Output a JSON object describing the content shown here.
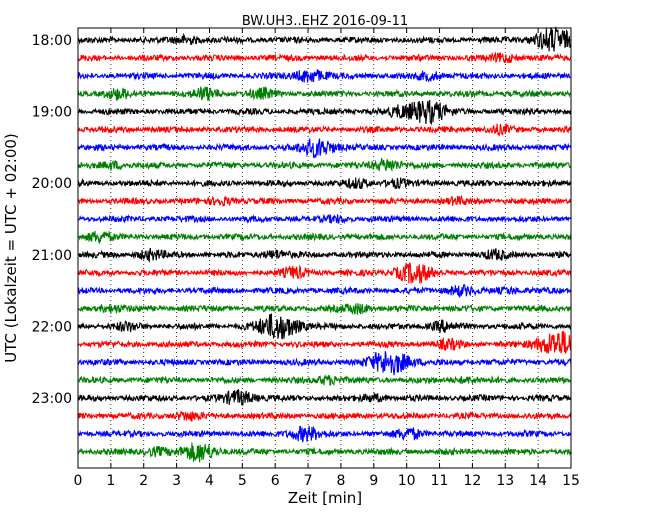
{
  "chart_data": {
    "type": "line",
    "title": "BW.UH3..EHZ 2016-09-11",
    "xlabel": "Zeit  [min]",
    "ylabel": "UTC (Lokalzeit = UTC + 02:00)",
    "xlim": [
      0,
      15
    ],
    "x_ticks": [
      "0",
      "1",
      "2",
      "3",
      "4",
      "5",
      "6",
      "7",
      "8",
      "9",
      "10",
      "11",
      "12",
      "13",
      "14",
      "15"
    ],
    "y_ticks": [
      "18:00",
      "19:00",
      "20:00",
      "21:00",
      "22:00",
      "23:00"
    ],
    "grid": "vertical dotted",
    "trace_interval_min": 15,
    "series": [
      {
        "start": "18:00",
        "color": "#000000",
        "events": [
          [
            3.3,
            0.3
          ],
          [
            14.45,
            0.9
          ]
        ]
      },
      {
        "start": "18:15",
        "color": "#ff0000",
        "events": [
          [
            13.0,
            0.3
          ]
        ]
      },
      {
        "start": "18:30",
        "color": "#0000ff",
        "events": [
          [
            7.05,
            0.5
          ],
          [
            10.7,
            0.3
          ]
        ]
      },
      {
        "start": "18:45",
        "color": "#008000",
        "events": [
          [
            1.2,
            0.35
          ],
          [
            3.9,
            0.4
          ],
          [
            5.6,
            0.3
          ]
        ]
      },
      {
        "start": "19:00",
        "color": "#000000",
        "events": [
          [
            10.6,
            0.9
          ],
          [
            9.8,
            0.3
          ]
        ]
      },
      {
        "start": "19:15",
        "color": "#ff0000",
        "events": [
          [
            12.8,
            0.25
          ]
        ]
      },
      {
        "start": "19:30",
        "color": "#0000ff",
        "events": [
          [
            7.3,
            0.7
          ]
        ]
      },
      {
        "start": "19:45",
        "color": "#008000",
        "events": [
          [
            9.4,
            0.45
          ],
          [
            1.1,
            0.25
          ]
        ]
      },
      {
        "start": "20:00",
        "color": "#000000",
        "events": [
          [
            8.5,
            0.3
          ],
          [
            9.7,
            0.25
          ]
        ]
      },
      {
        "start": "20:15",
        "color": "#ff0000",
        "events": [
          [
            4.4,
            0.25
          ],
          [
            11.5,
            0.2
          ]
        ]
      },
      {
        "start": "20:30",
        "color": "#0000ff",
        "events": [
          [
            7.9,
            0.2
          ]
        ]
      },
      {
        "start": "20:45",
        "color": "#008000",
        "events": [
          [
            0.6,
            0.35
          ]
        ]
      },
      {
        "start": "21:00",
        "color": "#000000",
        "events": [
          [
            2.2,
            0.35
          ],
          [
            6.0,
            0.3
          ],
          [
            12.7,
            0.3
          ]
        ]
      },
      {
        "start": "21:15",
        "color": "#ff0000",
        "events": [
          [
            10.2,
            0.75
          ],
          [
            6.6,
            0.35
          ]
        ]
      },
      {
        "start": "21:30",
        "color": "#0000ff",
        "events": [
          [
            11.6,
            0.35
          ],
          [
            13.1,
            0.2
          ]
        ]
      },
      {
        "start": "21:45",
        "color": "#008000",
        "events": [
          [
            8.5,
            0.35
          ],
          [
            1.0,
            0.25
          ]
        ]
      },
      {
        "start": "22:00",
        "color": "#000000",
        "events": [
          [
            6.1,
            1.0
          ],
          [
            11.1,
            0.35
          ],
          [
            1.5,
            0.25
          ]
        ]
      },
      {
        "start": "22:15",
        "color": "#ff0000",
        "events": [
          [
            14.6,
            1.0
          ],
          [
            11.3,
            0.3
          ]
        ]
      },
      {
        "start": "22:30",
        "color": "#0000ff",
        "events": [
          [
            9.5,
            0.95
          ]
        ]
      },
      {
        "start": "22:45",
        "color": "#008000",
        "events": [
          [
            7.6,
            0.3
          ],
          [
            11.8,
            0.2
          ]
        ]
      },
      {
        "start": "23:00",
        "color": "#000000",
        "events": [
          [
            4.9,
            0.55
          ],
          [
            9.0,
            0.25
          ]
        ]
      },
      {
        "start": "23:15",
        "color": "#ff0000",
        "events": [
          [
            3.3,
            0.3
          ]
        ]
      },
      {
        "start": "23:30",
        "color": "#0000ff",
        "events": [
          [
            6.9,
            0.55
          ],
          [
            10.1,
            0.4
          ]
        ]
      },
      {
        "start": "23:45",
        "color": "#008000",
        "events": [
          [
            3.7,
            0.7
          ],
          [
            2.4,
            0.3
          ]
        ]
      }
    ]
  }
}
